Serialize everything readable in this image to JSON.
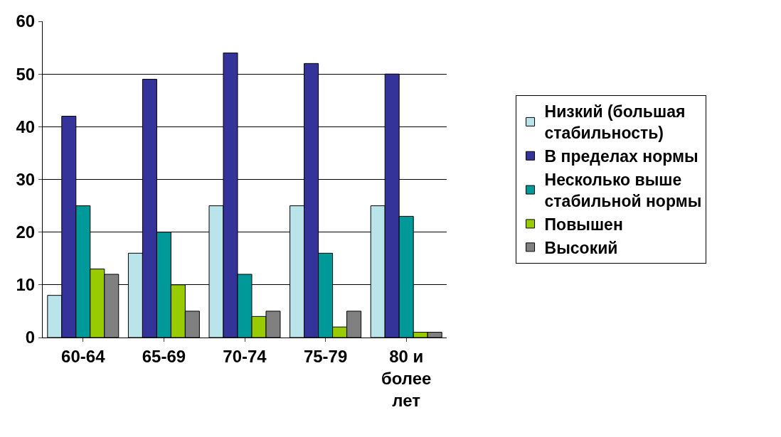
{
  "chart_data": {
    "type": "bar",
    "categories": [
      "60-64",
      "65-69",
      "70-74",
      "75-79",
      "80 и более лет"
    ],
    "series": [
      {
        "name": "Низкий (большая стабильность)",
        "color": "#b8e4ea",
        "values": [
          8,
          16,
          25,
          25,
          25
        ]
      },
      {
        "name": "В пределах нормы",
        "color": "#333399",
        "values": [
          42,
          49,
          54,
          52,
          50
        ]
      },
      {
        "name": "Несколько выше стабильной нормы",
        "color": "#009999",
        "values": [
          25,
          20,
          12,
          16,
          23
        ]
      },
      {
        "name": "Повышен",
        "color": "#99cc00",
        "values": [
          13,
          10,
          4,
          2,
          1
        ]
      },
      {
        "name": "Высокий",
        "color": "#808080",
        "values": [
          12,
          5,
          5,
          5,
          1
        ]
      }
    ],
    "ylim": [
      0,
      60
    ],
    "yticks": [
      0,
      10,
      20,
      30,
      40,
      50,
      60
    ],
    "grid": "y",
    "legend": "right"
  }
}
